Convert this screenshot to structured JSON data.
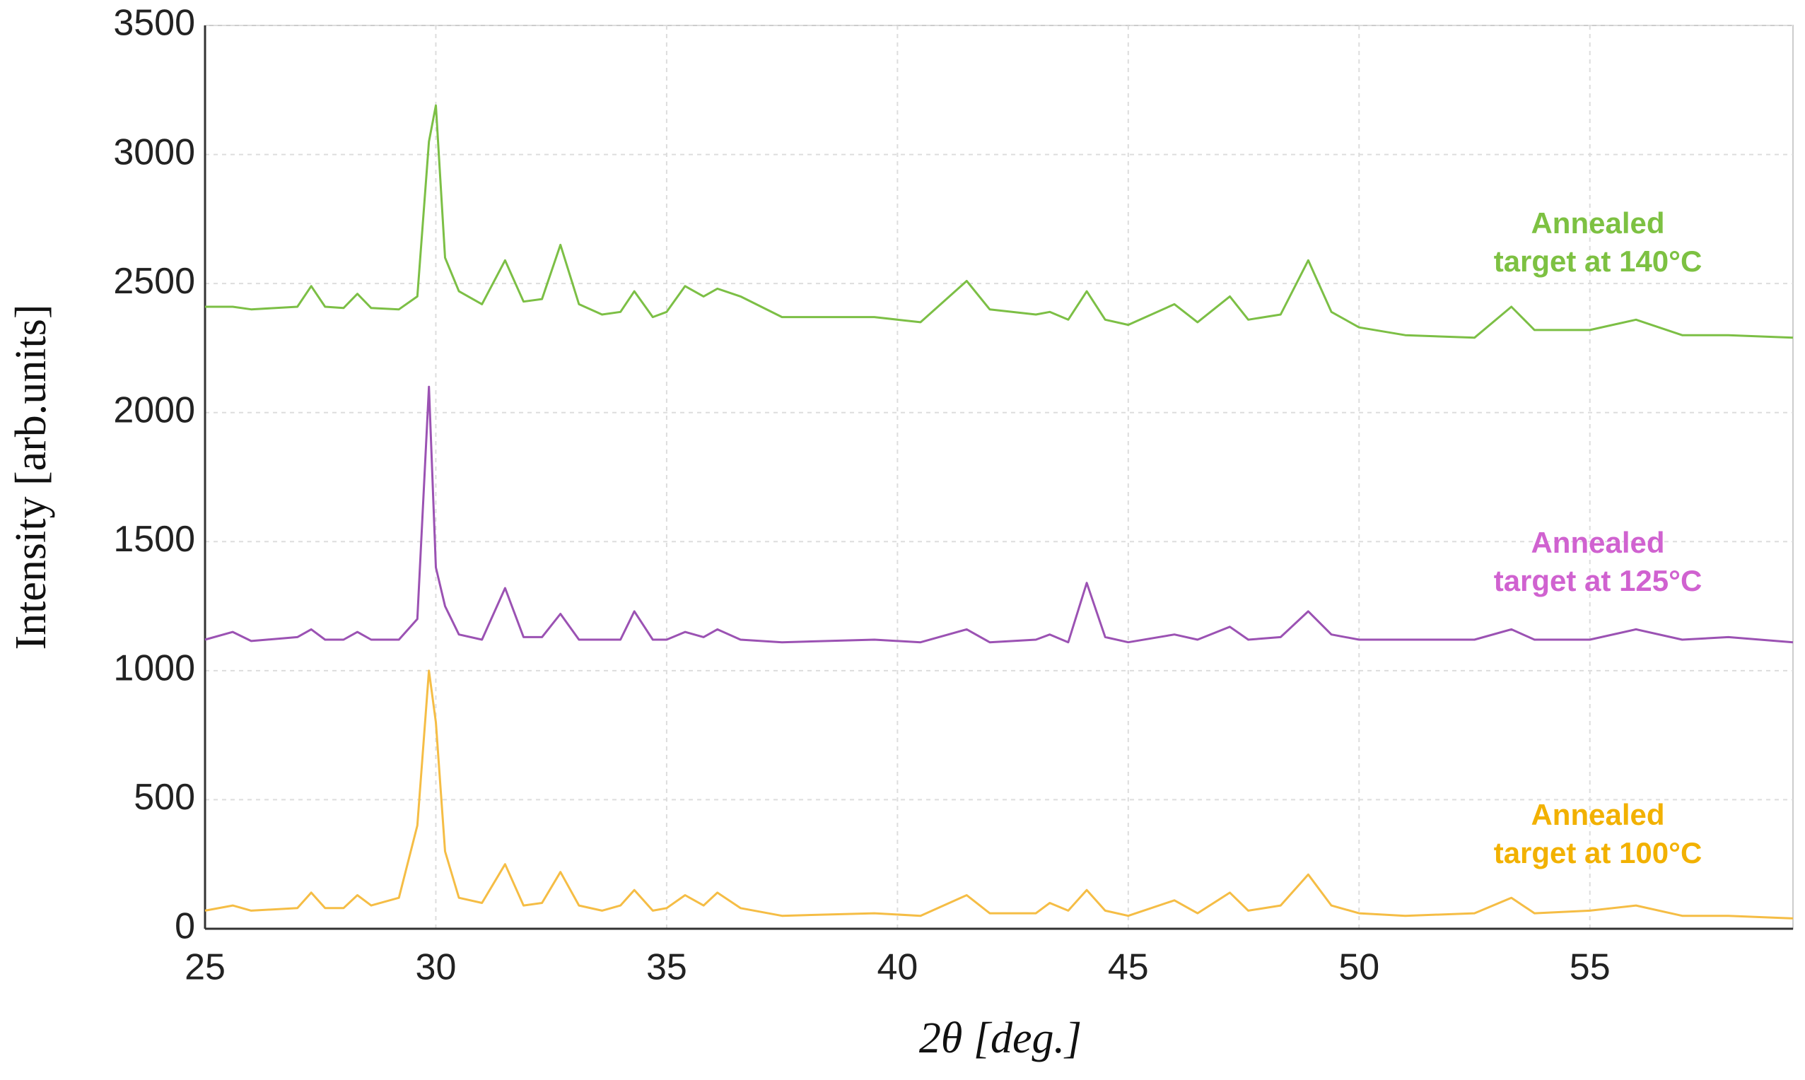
{
  "chart_data": {
    "type": "line",
    "x_label": "2θ [deg.]",
    "y_label": "Intensity [arb.units]",
    "xlim": [
      25,
      59.4
    ],
    "ylim": [
      0,
      3500
    ],
    "xticks": [
      25,
      30,
      35,
      40,
      45,
      50,
      55
    ],
    "yticks": [
      0,
      500,
      1000,
      1500,
      2000,
      2500,
      3000,
      3500
    ],
    "grid": true,
    "x": [
      25,
      25.6,
      26,
      27,
      27.3,
      27.6,
      28,
      28.3,
      28.6,
      29.2,
      29.6,
      29.85,
      30.0,
      30.2,
      30.5,
      31,
      31.5,
      31.9,
      32.3,
      32.7,
      33.1,
      33.6,
      34,
      34.3,
      34.7,
      35,
      35.4,
      35.8,
      36.1,
      36.6,
      37.5,
      39.5,
      40.5,
      41.5,
      42,
      43,
      43.3,
      43.7,
      44.1,
      44.5,
      45,
      46,
      46.5,
      47.2,
      47.6,
      48.3,
      48.9,
      49.4,
      50,
      51,
      52.5,
      53.3,
      53.8,
      55,
      56,
      57,
      58,
      59.4
    ],
    "series": [
      {
        "label": [
          "Annealed",
          "target at 140°C"
        ],
        "color": "#7cbf45",
        "label_color": "#7dc142",
        "values": [
          2410,
          2410,
          2400,
          2410,
          2490,
          2410,
          2405,
          2460,
          2405,
          2400,
          2450,
          3050,
          3190,
          2600,
          2470,
          2420,
          2590,
          2430,
          2440,
          2650,
          2420,
          2380,
          2390,
          2470,
          2370,
          2390,
          2490,
          2450,
          2480,
          2450,
          2370,
          2370,
          2350,
          2510,
          2400,
          2380,
          2390,
          2360,
          2470,
          2360,
          2340,
          2420,
          2350,
          2450,
          2360,
          2380,
          2590,
          2390,
          2330,
          2300,
          2290,
          2410,
          2320,
          2320,
          2360,
          2300,
          2300,
          2290
        ]
      },
      {
        "label": [
          "Annealed",
          "target at 125°C"
        ],
        "color": "#9b52b3",
        "label_color": "#d062d0",
        "values": [
          1120,
          1150,
          1115,
          1130,
          1160,
          1120,
          1120,
          1150,
          1120,
          1120,
          1200,
          2100,
          1400,
          1250,
          1140,
          1120,
          1320,
          1130,
          1130,
          1220,
          1120,
          1120,
          1120,
          1230,
          1120,
          1120,
          1150,
          1130,
          1160,
          1120,
          1110,
          1120,
          1110,
          1160,
          1110,
          1120,
          1140,
          1110,
          1340,
          1130,
          1110,
          1140,
          1120,
          1170,
          1120,
          1130,
          1230,
          1140,
          1120,
          1120,
          1120,
          1160,
          1120,
          1120,
          1160,
          1120,
          1130,
          1110
        ]
      },
      {
        "label": [
          "Annealed",
          "target at 100°C"
        ],
        "color": "#f5bd45",
        "label_color": "#f2b100",
        "values": [
          70,
          90,
          70,
          80,
          140,
          80,
          80,
          130,
          90,
          120,
          400,
          1000,
          800,
          300,
          120,
          100,
          250,
          90,
          100,
          220,
          90,
          70,
          90,
          150,
          70,
          80,
          130,
          90,
          140,
          80,
          50,
          60,
          50,
          130,
          60,
          60,
          100,
          70,
          150,
          70,
          50,
          110,
          60,
          140,
          70,
          90,
          210,
          90,
          60,
          50,
          60,
          120,
          60,
          70,
          90,
          50,
          50,
          40
        ]
      }
    ]
  }
}
